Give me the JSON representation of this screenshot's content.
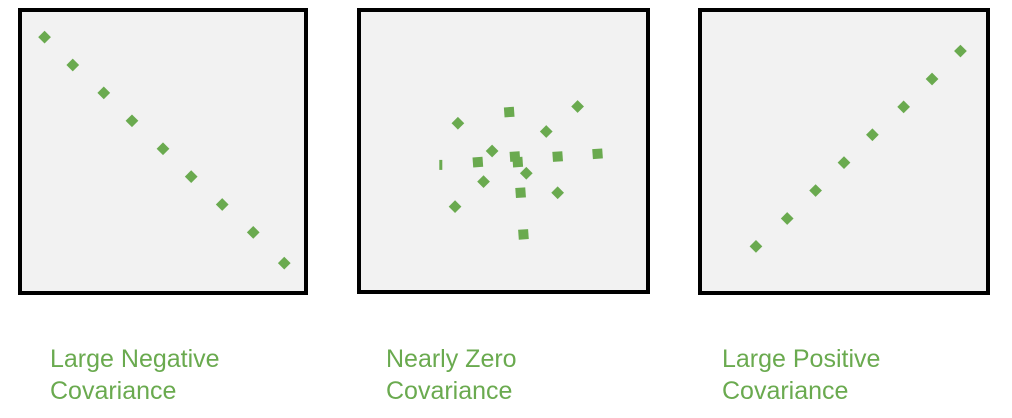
{
  "colors": {
    "marker": "#6aaa4f",
    "frame": "#000000",
    "plot_background": "#f2f2f2",
    "caption_text": "#6aaa4f",
    "page_background": "#ffffff"
  },
  "chart_data": [
    {
      "type": "scatter",
      "caption": [
        "Large Negative",
        "Covariance"
      ],
      "marker": "diamond",
      "grid": false,
      "axes_visible": false,
      "xlim": [
        0,
        10
      ],
      "ylim": [
        0,
        10
      ],
      "points": [
        {
          "x": 0.8,
          "y": 9.1
        },
        {
          "x": 1.8,
          "y": 8.1
        },
        {
          "x": 2.9,
          "y": 7.1
        },
        {
          "x": 3.9,
          "y": 6.1
        },
        {
          "x": 5.0,
          "y": 5.1
        },
        {
          "x": 6.0,
          "y": 4.1
        },
        {
          "x": 7.1,
          "y": 3.1
        },
        {
          "x": 8.2,
          "y": 2.1
        },
        {
          "x": 9.3,
          "y": 1.0
        }
      ]
    },
    {
      "type": "scatter",
      "caption": [
        "Nearly Zero",
        "Covariance"
      ],
      "marker": "mixed",
      "grid": false,
      "axes_visible": false,
      "xlim": [
        0,
        10
      ],
      "ylim": [
        0,
        10
      ],
      "points": [
        {
          "x": 3.4,
          "y": 6.0,
          "m": "d"
        },
        {
          "x": 5.2,
          "y": 6.4,
          "m": "s"
        },
        {
          "x": 7.6,
          "y": 6.6,
          "m": "d"
        },
        {
          "x": 6.5,
          "y": 5.7,
          "m": "d"
        },
        {
          "x": 4.6,
          "y": 5.0,
          "m": "d"
        },
        {
          "x": 5.4,
          "y": 4.8,
          "m": "s"
        },
        {
          "x": 5.5,
          "y": 4.6,
          "m": "s"
        },
        {
          "x": 4.1,
          "y": 4.6,
          "m": "s"
        },
        {
          "x": 6.9,
          "y": 4.8,
          "m": "s"
        },
        {
          "x": 8.3,
          "y": 4.9,
          "m": "s"
        },
        {
          "x": 2.8,
          "y": 4.5,
          "m": "t"
        },
        {
          "x": 5.8,
          "y": 4.2,
          "m": "d"
        },
        {
          "x": 4.3,
          "y": 3.9,
          "m": "d"
        },
        {
          "x": 5.6,
          "y": 3.5,
          "m": "s"
        },
        {
          "x": 6.9,
          "y": 3.5,
          "m": "d"
        },
        {
          "x": 3.3,
          "y": 3.0,
          "m": "d"
        },
        {
          "x": 5.7,
          "y": 2.0,
          "m": "s"
        }
      ]
    },
    {
      "type": "scatter",
      "caption": [
        "Large Positive",
        "Covariance"
      ],
      "marker": "diamond",
      "grid": false,
      "axes_visible": false,
      "xlim": [
        0,
        10
      ],
      "ylim": [
        0,
        10
      ],
      "points": [
        {
          "x": 1.9,
          "y": 1.6
        },
        {
          "x": 3.0,
          "y": 2.6
        },
        {
          "x": 4.0,
          "y": 3.6
        },
        {
          "x": 5.0,
          "y": 4.6
        },
        {
          "x": 6.0,
          "y": 5.6
        },
        {
          "x": 7.1,
          "y": 6.6
        },
        {
          "x": 8.1,
          "y": 7.6
        },
        {
          "x": 9.1,
          "y": 8.6
        }
      ]
    }
  ]
}
